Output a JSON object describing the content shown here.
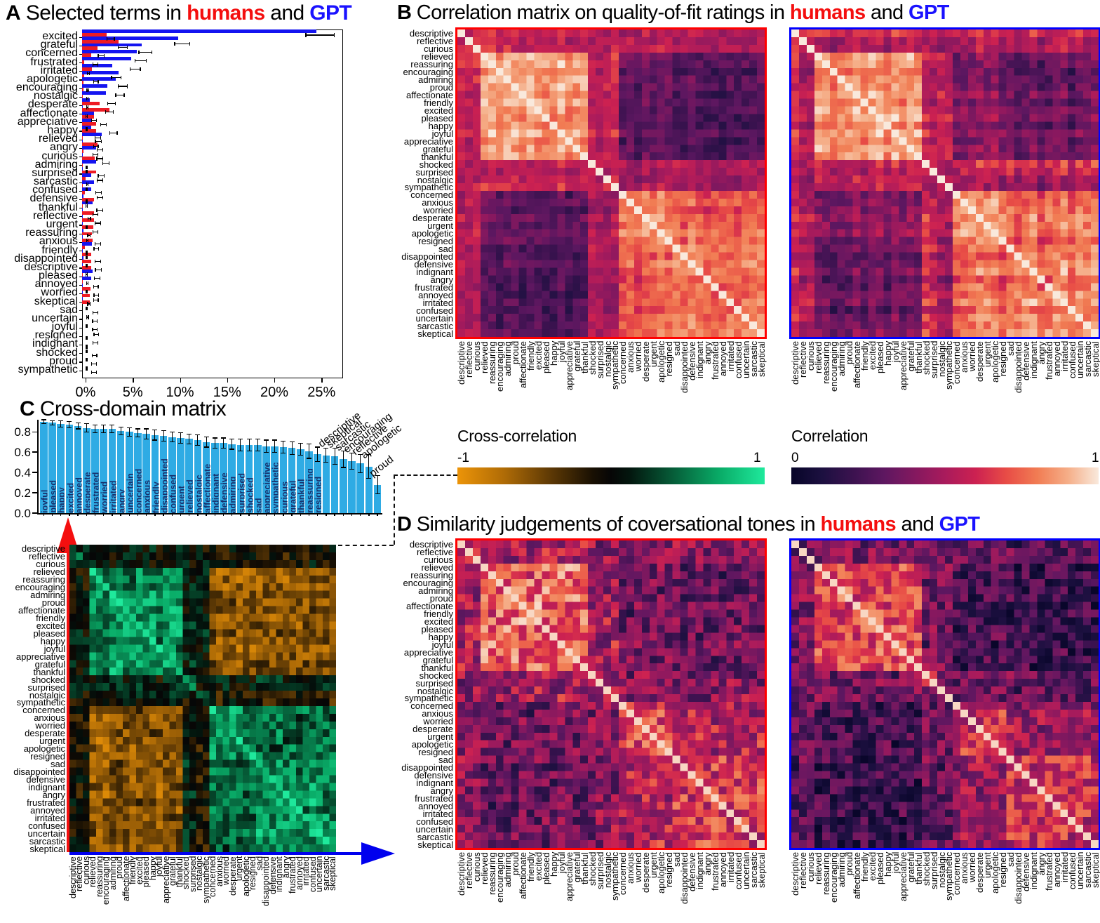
{
  "colors": {
    "human_red": "#f40f0f",
    "gpt_blue": "#1a12ff",
    "bar_red": "#ee1b24",
    "bar_blue": "#1414f0",
    "bar_cyan": "#2fabe4",
    "border_red": "#ff0000",
    "border_blue": "#0000ff"
  },
  "terms": [
    "descriptive",
    "reflective",
    "curious",
    "relieved",
    "reassuring",
    "encouraging",
    "admiring",
    "proud",
    "affectionate",
    "friendly",
    "excited",
    "pleased",
    "happy",
    "joyful",
    "appreciative",
    "grateful",
    "thankful",
    "shocked",
    "surprised",
    "nostalgic",
    "sympathetic",
    "concerned",
    "anxious",
    "worried",
    "desperate",
    "urgent",
    "apologetic",
    "resigned",
    "sad",
    "disappointed",
    "defensive",
    "indignant",
    "angry",
    "frustrated",
    "annoyed",
    "irritated",
    "confused",
    "uncertain",
    "sarcastic",
    "skeptical"
  ],
  "groups": [
    0,
    0,
    0,
    1,
    1,
    1,
    1,
    1,
    1,
    1,
    1,
    1,
    1,
    1,
    1,
    1,
    1,
    2,
    2,
    3,
    3,
    4,
    4,
    4,
    4,
    4,
    4,
    4,
    5,
    5,
    5,
    5,
    5,
    5,
    5,
    5,
    5,
    5,
    5,
    5
  ],
  "colormaps": {
    "rocket": [
      [
        0.0,
        "#070528"
      ],
      [
        0.1,
        "#1c1040"
      ],
      [
        0.2,
        "#3b124f"
      ],
      [
        0.3,
        "#5d1760"
      ],
      [
        0.4,
        "#83185f"
      ],
      [
        0.5,
        "#a91b5c"
      ],
      [
        0.6,
        "#cc2151"
      ],
      [
        0.7,
        "#e84c46"
      ],
      [
        0.8,
        "#f17c53"
      ],
      [
        0.9,
        "#f5ae88"
      ],
      [
        1.0,
        "#f9e9dc"
      ]
    ],
    "crossgreen": [
      [
        0.0,
        "#ec9408"
      ],
      [
        0.15,
        "#b06c06"
      ],
      [
        0.3,
        "#5f3a05"
      ],
      [
        0.44,
        "#191003"
      ],
      [
        0.5,
        "#060606"
      ],
      [
        0.56,
        "#03160e"
      ],
      [
        0.7,
        "#065c38"
      ],
      [
        0.85,
        "#09aa66"
      ],
      [
        1.0,
        "#1fe99c"
      ]
    ]
  },
  "chart_data": [
    {
      "panel": "A",
      "type": "bar",
      "title": {
        "letter": "A",
        "text": " Selected terms in ",
        "humans": "humans",
        "and": " and ",
        "gpt": "GPT"
      },
      "x_ticks": [
        "0%",
        "5%",
        "10%",
        "15%",
        "20%",
        "25%"
      ],
      "x_tick_values": [
        0,
        5,
        10,
        15,
        20,
        25
      ],
      "xlim": [
        0,
        27.2
      ],
      "categories": [
        "excited",
        "grateful",
        "concerned",
        "frustrated",
        "irritated",
        "apologetic",
        "encouraging",
        "nostalgic",
        "desperate",
        "affectionate",
        "appreciative",
        "happy",
        "relieved",
        "angry",
        "curious",
        "admiring",
        "surprised",
        "sarcastic",
        "confused",
        "defensive",
        "thankful",
        "reflective",
        "urgent",
        "reassuring",
        "anxious",
        "friendly",
        "disappointed",
        "descriptive",
        "pleased",
        "annoyed",
        "worried",
        "skeptical",
        "sad",
        "uncertain",
        "joyful",
        "resigned",
        "indignant",
        "shocked",
        "proud",
        "sympathetic"
      ],
      "series": [
        {
          "name": "GPT",
          "color": "#1414f0",
          "values": [
            24.8,
            10.2,
            6.3,
            5.8,
            5.2,
            3.2,
            3.9,
            3.6,
            2.7,
            2.5,
            0.85,
            0.1,
            1.25,
            1.05,
            1.0,
            2.1,
            0.08,
            1.5,
            0.1,
            1.5,
            0.08,
            1.0,
            1.25,
            1.0,
            0.12,
            1.1,
            0.06,
            0.06,
            0.08,
            0.12,
            0.1,
            1.05,
            0.06,
            0.15,
            0.06,
            1.1,
            1.0,
            0.06,
            0.06,
            0.06
          ],
          "errors": [
            1.5,
            0.8,
            0.7,
            0.6,
            0.55,
            0.5,
            0.5,
            0.45,
            0.4,
            0.4,
            0.25,
            0.07,
            0.3,
            0.25,
            0.25,
            0.35,
            0.05,
            0.3,
            0.07,
            0.3,
            0.06,
            0.25,
            0.3,
            0.25,
            0.08,
            0.25,
            0.05,
            0.05,
            0.06,
            0.08,
            0.07,
            0.25,
            0.05,
            0.1,
            0.05,
            0.25,
            0.25,
            0.05,
            0.05,
            0.05
          ]
        },
        {
          "name": "humans",
          "color": "#ee1b24",
          "values": [
            2.6,
            3.9,
            1.6,
            1.0,
            0.25,
            1.05,
            0.2,
            0.12,
            0.12,
            0.08,
            1.85,
            2.9,
            1.3,
            1.5,
            1.45,
            0.06,
            1.6,
            0.12,
            1.35,
            0.06,
            1.45,
            0.35,
            0.1,
            0.3,
            1.25,
            0.1,
            1.25,
            1.3,
            1.2,
            1.05,
            1.1,
            0.3,
            1.0,
            0.95,
            0.95,
            0.06,
            0.05,
            0.9,
            0.85,
            0.85
          ],
          "errors": [
            0.4,
            0.5,
            0.3,
            0.25,
            0.1,
            0.25,
            0.1,
            0.08,
            0.08,
            0.06,
            0.3,
            0.4,
            0.3,
            0.3,
            0.3,
            0.05,
            0.3,
            0.08,
            0.3,
            0.05,
            0.3,
            0.12,
            0.07,
            0.12,
            0.3,
            0.07,
            0.3,
            0.3,
            0.3,
            0.25,
            0.25,
            0.12,
            0.25,
            0.25,
            0.25,
            0.05,
            0.05,
            0.25,
            0.25,
            0.25
          ]
        }
      ]
    },
    {
      "panel": "B",
      "type": "heatmap",
      "title": {
        "letter": "B",
        "text": " Correlation matrix on quality-of-fit ratings in ",
        "humans": "humans",
        "and": " and ",
        "gpt": "GPT"
      },
      "labels_key": "terms",
      "n": 40,
      "colorbar": {
        "label": "Correlation",
        "min": "0",
        "max": "1",
        "colormap": "rocket"
      },
      "specs": {
        "humans": {
          "border": "#ff0000",
          "range": [
            0,
            1
          ],
          "colormap": "rocket",
          "noise": 0.09,
          "rowvar": 0.09,
          "diag": 1,
          "seed": 7,
          "blocks": [
            [
              0.6,
              0.58,
              0.55,
              0.55,
              0.53,
              0.53
            ],
            [
              0.58,
              0.86,
              0.56,
              0.62,
              0.3,
              0.27
            ],
            [
              0.55,
              0.56,
              0.68,
              0.55,
              0.52,
              0.55
            ],
            [
              0.55,
              0.62,
              0.55,
              0.6,
              0.5,
              0.48
            ],
            [
              0.53,
              0.3,
              0.52,
              0.5,
              0.78,
              0.72
            ],
            [
              0.53,
              0.27,
              0.55,
              0.48,
              0.72,
              0.79
            ]
          ]
        },
        "gpt": {
          "border": "#0000ff",
          "range": [
            0,
            1
          ],
          "colormap": "rocket",
          "noise": 0.1,
          "rowvar": 0.13,
          "diag": 1,
          "seed": 13,
          "blocks": [
            [
              0.58,
              0.55,
              0.52,
              0.52,
              0.55,
              0.55
            ],
            [
              0.55,
              0.84,
              0.55,
              0.6,
              0.38,
              0.33
            ],
            [
              0.52,
              0.55,
              0.66,
              0.52,
              0.58,
              0.6
            ],
            [
              0.52,
              0.6,
              0.52,
              0.58,
              0.5,
              0.48
            ],
            [
              0.55,
              0.38,
              0.58,
              0.5,
              0.8,
              0.74
            ],
            [
              0.55,
              0.33,
              0.6,
              0.48,
              0.74,
              0.8
            ]
          ]
        }
      }
    },
    {
      "panel": "C",
      "type": "bar+heatmap",
      "title": {
        "letter": "C",
        "text": " Cross-domain matrix"
      },
      "bar": {
        "categories": [
          "joyful",
          "pleased",
          "happy",
          "excited",
          "annoyed",
          "desperate",
          "frustrated",
          "worried",
          "irritated",
          "angry",
          "uncertain",
          "concerned",
          "anxious",
          "friendly",
          "disappointed",
          "confused",
          "urgent",
          "relieved",
          "nostalgic",
          "affectionate",
          "indignant",
          "defensive",
          "admiring",
          "surprised",
          "shocked",
          "sad",
          "appreciative",
          "sympathetic",
          "curious",
          "grateful",
          "thankful",
          "reassuring",
          "resigned",
          "descriptive",
          "skeptical",
          "sarcastic",
          "encouraging",
          "reflective",
          "apologetic",
          "proud"
        ],
        "values": [
          0.9,
          0.89,
          0.88,
          0.87,
          0.86,
          0.84,
          0.83,
          0.83,
          0.83,
          0.81,
          0.8,
          0.79,
          0.78,
          0.77,
          0.76,
          0.75,
          0.74,
          0.73,
          0.72,
          0.7,
          0.69,
          0.69,
          0.68,
          0.67,
          0.67,
          0.67,
          0.66,
          0.66,
          0.65,
          0.64,
          0.63,
          0.61,
          0.58,
          0.57,
          0.56,
          0.53,
          0.51,
          0.49,
          0.46,
          0.28
        ],
        "errors": [
          0.02,
          0.02,
          0.03,
          0.03,
          0.03,
          0.04,
          0.04,
          0.04,
          0.04,
          0.04,
          0.04,
          0.04,
          0.05,
          0.05,
          0.05,
          0.05,
          0.05,
          0.05,
          0.05,
          0.05,
          0.05,
          0.05,
          0.05,
          0.06,
          0.06,
          0.06,
          0.06,
          0.06,
          0.06,
          0.06,
          0.06,
          0.07,
          0.07,
          0.07,
          0.08,
          0.08,
          0.08,
          0.09,
          0.12,
          0.09
        ],
        "y_ticks": [
          "0.0",
          "0.2",
          "0.4",
          "0.6",
          "0.8"
        ],
        "y_tick_values": [
          0.0,
          0.2,
          0.4,
          0.6,
          0.8
        ],
        "ylim": [
          0,
          0.92
        ],
        "n_labels_inside": 33
      },
      "colorbar": {
        "label": "Cross-correlation",
        "min": "-1",
        "max": "1",
        "colormap": "crossgreen"
      },
      "heatmap_spec": {
        "range": [
          -1,
          1
        ],
        "colormap": "crossgreen",
        "noise": 0.3,
        "rowvar": 0.12,
        "diag_boost": 0.35,
        "seed": 41,
        "symmetric": false,
        "blocks": [
          [
            0.15,
            0.05,
            0.0,
            0.05,
            -0.05,
            -0.05
          ],
          [
            0.05,
            0.55,
            0.05,
            0.1,
            -0.52,
            -0.55
          ],
          [
            0.0,
            0.05,
            0.35,
            0.0,
            0.05,
            0.1
          ],
          [
            0.05,
            0.1,
            0.0,
            0.25,
            -0.05,
            -0.1
          ],
          [
            -0.05,
            -0.52,
            0.05,
            -0.05,
            0.55,
            0.45
          ],
          [
            -0.05,
            -0.55,
            0.1,
            -0.1,
            0.45,
            0.58
          ]
        ]
      }
    },
    {
      "panel": "D",
      "type": "heatmap",
      "title": {
        "letter": "D",
        "text": " Similarity judgements of coversational tones in ",
        "humans": "humans",
        "and": " and ",
        "gpt": "GPT"
      },
      "labels_key": "terms",
      "n": 40,
      "specs": {
        "humans": {
          "border": "#ff0000",
          "range": [
            0,
            1
          ],
          "colormap": "rocket",
          "noise": 0.22,
          "rowvar": 0.05,
          "diag": 0.97,
          "seed": 23,
          "blocks": [
            [
              0.52,
              0.5,
              0.45,
              0.45,
              0.42,
              0.42
            ],
            [
              0.5,
              0.74,
              0.45,
              0.48,
              0.35,
              0.32
            ],
            [
              0.45,
              0.45,
              0.6,
              0.45,
              0.42,
              0.42
            ],
            [
              0.45,
              0.48,
              0.45,
              0.5,
              0.42,
              0.4
            ],
            [
              0.42,
              0.35,
              0.42,
              0.42,
              0.64,
              0.55
            ],
            [
              0.42,
              0.32,
              0.42,
              0.4,
              0.55,
              0.63
            ]
          ]
        },
        "gpt": {
          "border": "#0000ff",
          "range": [
            0,
            1
          ],
          "colormap": "rocket",
          "noise": 0.2,
          "rowvar": 0.05,
          "diag": 0.97,
          "seed": 31,
          "blocks": [
            [
              0.38,
              0.36,
              0.32,
              0.32,
              0.3,
              0.28
            ],
            [
              0.36,
              0.66,
              0.35,
              0.36,
              0.22,
              0.18
            ],
            [
              0.32,
              0.35,
              0.55,
              0.32,
              0.35,
              0.33
            ],
            [
              0.32,
              0.36,
              0.32,
              0.4,
              0.3,
              0.28
            ],
            [
              0.3,
              0.22,
              0.35,
              0.3,
              0.6,
              0.45
            ],
            [
              0.28,
              0.18,
              0.33,
              0.28,
              0.45,
              0.58
            ]
          ]
        }
      }
    }
  ]
}
